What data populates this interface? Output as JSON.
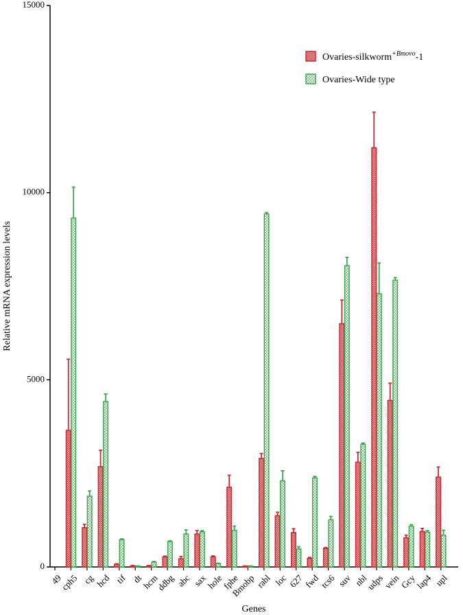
{
  "chart_data": {
    "type": "bar",
    "xlabel": "Genes",
    "ylabel": "Relative mRNA expression levels",
    "ylim": [
      0,
      15000
    ],
    "yticks": [
      0,
      5000,
      10000,
      15000
    ],
    "grid": false,
    "legend_position": "top-right",
    "categories": [
      "49",
      "cph5",
      "cg",
      "hcd",
      "tif",
      "dt",
      "hcm",
      "ddbg",
      "abc",
      "sax",
      "hole",
      "fphe",
      "Bmobp",
      "rabl",
      "loc",
      "627",
      "fwd",
      "tcs6",
      "suv",
      "nbl",
      "udps",
      "vein",
      "Gcy",
      "lap4",
      "upl"
    ],
    "series": [
      {
        "legend_label": "Ovaries-silkworm",
        "legend_superscript": "+Bmovo",
        "legend_suffix": "-1",
        "color": "#d0262e",
        "values": [
          0,
          3650,
          1050,
          2680,
          70,
          30,
          30,
          270,
          220,
          880,
          270,
          2130,
          20,
          2900,
          1370,
          920,
          230,
          500,
          6500,
          2800,
          11200,
          4450,
          780,
          950,
          2400
        ],
        "errors": [
          0,
          1900,
          90,
          440,
          15,
          10,
          10,
          20,
          60,
          90,
          25,
          320,
          5,
          130,
          90,
          100,
          25,
          20,
          630,
          260,
          950,
          460,
          70,
          80,
          270
        ]
      },
      {
        "legend_label": "Ovaries-Wide type",
        "color": "#3aa84a",
        "values": [
          0,
          9320,
          1890,
          4420,
          730,
          20,
          130,
          680,
          880,
          940,
          90,
          980,
          20,
          9430,
          2300,
          480,
          2380,
          1260,
          8050,
          3280,
          7300,
          7660,
          1090,
          930,
          850
        ],
        "errors": [
          0,
          830,
          140,
          200,
          20,
          5,
          15,
          20,
          110,
          30,
          10,
          110,
          5,
          40,
          270,
          60,
          40,
          90,
          220,
          30,
          820,
          70,
          40,
          40,
          130
        ]
      }
    ]
  }
}
